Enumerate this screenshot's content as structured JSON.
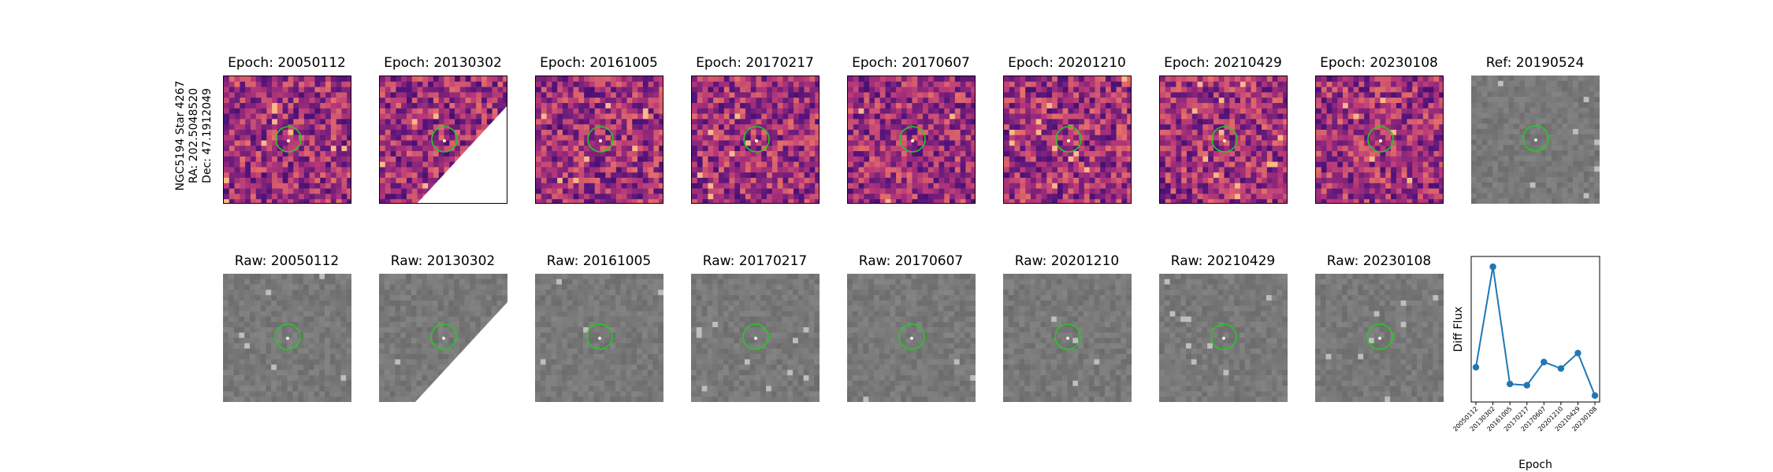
{
  "star_label": {
    "name": "NGC5194 Star 4267",
    "ra": "RA: 202.5048520",
    "dec": "Dec: 47.1912049"
  },
  "epochs": [
    "20050112",
    "20130302",
    "20161005",
    "20170217",
    "20170607",
    "20201210",
    "20210429",
    "20230108"
  ],
  "diff_titles": [
    "Epoch: 20050112",
    "Epoch: 20130302",
    "Epoch: 20161005",
    "Epoch: 20170217",
    "Epoch: 20170607",
    "Epoch: 20201210",
    "Epoch: 20210429",
    "Epoch: 20230108"
  ],
  "raw_titles": [
    "Raw: 20050112",
    "Raw: 20130302",
    "Raw: 20161005",
    "Raw: 20170217",
    "Raw: 20170607",
    "Raw: 20201210",
    "Raw: 20210429",
    "Raw: 20230108"
  ],
  "ref_title": "Ref: 20190524",
  "colors": {
    "marker_circle": "#22cc22",
    "series": "#1f77b4"
  },
  "chart_data": {
    "type": "line",
    "categories": [
      "20050112",
      "20130302",
      "20161005",
      "20170217",
      "20170607",
      "20201210",
      "20210429",
      "20230108"
    ],
    "values": [
      0.22,
      1.0,
      0.09,
      0.08,
      0.26,
      0.21,
      0.33,
      0.0
    ],
    "xlabel": "Epoch",
    "ylabel": "Diff Flux",
    "ylim": [
      -0.05,
      1.08
    ],
    "grid": false,
    "legend": "none"
  }
}
